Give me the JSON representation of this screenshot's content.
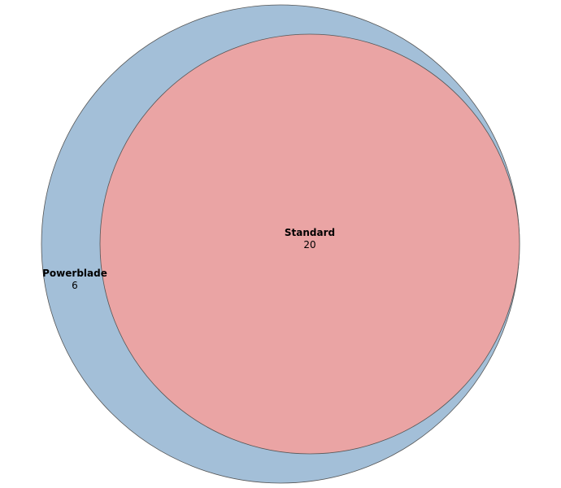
{
  "venn": {
    "sets": [
      {
        "name": "Powerblade",
        "count": "6",
        "color": "#a3bfd8"
      },
      {
        "name": "Standard",
        "count": "20",
        "color": "#eaa4a4"
      }
    ],
    "outline_color": "#555555"
  }
}
